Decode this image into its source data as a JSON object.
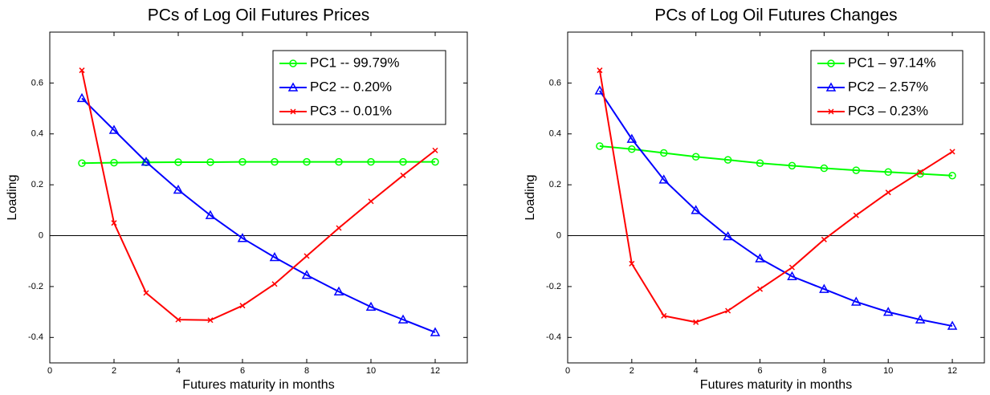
{
  "chart_data": [
    {
      "type": "line",
      "title": "PCs of Log Oil Futures Prices",
      "xlabel": "Futures maturity in months",
      "ylabel": "Loading",
      "x": [
        1,
        2,
        3,
        4,
        5,
        6,
        7,
        8,
        9,
        10,
        11,
        12
      ],
      "series": [
        {
          "name": "PC1 -- 99.79%",
          "color": "#00ff00",
          "marker": "circle",
          "values": [
            0.285,
            0.287,
            0.288,
            0.289,
            0.289,
            0.29,
            0.29,
            0.29,
            0.29,
            0.29,
            0.29,
            0.29
          ]
        },
        {
          "name": "PC2 -- 0.20%",
          "color": "#0000ff",
          "marker": "triangle",
          "values": [
            0.54,
            0.415,
            0.29,
            0.18,
            0.08,
            -0.01,
            -0.085,
            -0.155,
            -0.22,
            -0.28,
            -0.33,
            -0.38
          ]
        },
        {
          "name": "PC3 -- 0.01%",
          "color": "#ff0000",
          "marker": "x",
          "values": [
            0.65,
            0.05,
            -0.225,
            -0.33,
            -0.332,
            -0.275,
            -0.19,
            -0.08,
            0.03,
            0.135,
            0.237,
            0.335
          ]
        }
      ],
      "xlim": [
        0,
        13
      ],
      "xticks": [
        0,
        2,
        4,
        6,
        8,
        10,
        12
      ],
      "ylim": [
        -0.5,
        0.8
      ],
      "yticks": [
        -0.4,
        -0.2,
        0,
        0.2,
        0.4,
        0.6
      ],
      "legend": "upper right"
    },
    {
      "type": "line",
      "title": "PCs of Log Oil Futures Changes",
      "xlabel": "Futures maturity in months",
      "ylabel": "Loading",
      "x": [
        1,
        2,
        3,
        4,
        5,
        6,
        7,
        8,
        9,
        10,
        11,
        12
      ],
      "series": [
        {
          "name": "PC1 – 97.14%",
          "color": "#00ff00",
          "marker": "circle",
          "values": [
            0.352,
            0.34,
            0.325,
            0.31,
            0.298,
            0.285,
            0.275,
            0.265,
            0.257,
            0.25,
            0.243,
            0.236
          ]
        },
        {
          "name": "PC2 – 2.57%",
          "color": "#0000ff",
          "marker": "triangle",
          "values": [
            0.57,
            0.38,
            0.22,
            0.1,
            -0.003,
            -0.09,
            -0.16,
            -0.21,
            -0.26,
            -0.3,
            -0.33,
            -0.355
          ]
        },
        {
          "name": "PC3 – 0.23%",
          "color": "#ff0000",
          "marker": "x",
          "values": [
            0.65,
            -0.11,
            -0.315,
            -0.34,
            -0.295,
            -0.21,
            -0.125,
            -0.015,
            0.08,
            0.17,
            0.25,
            0.33
          ]
        }
      ],
      "xlim": [
        0,
        13
      ],
      "xticks": [
        0,
        2,
        4,
        6,
        8,
        10,
        12
      ],
      "ylim": [
        -0.5,
        0.8
      ],
      "yticks": [
        -0.4,
        -0.2,
        0,
        0.2,
        0.4,
        0.6
      ],
      "legend": "upper right"
    }
  ]
}
